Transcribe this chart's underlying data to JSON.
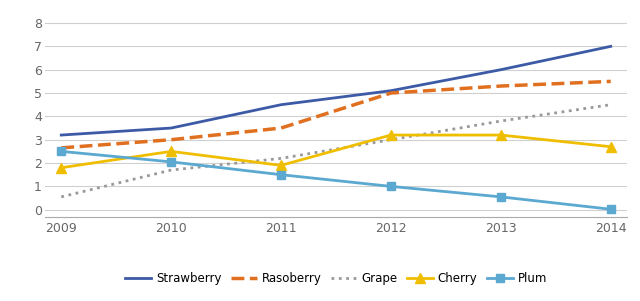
{
  "years": [
    2009,
    2010,
    2011,
    2012,
    2013,
    2014
  ],
  "series": {
    "Strawberry": {
      "values": [
        3.2,
        3.5,
        4.5,
        5.1,
        6.0,
        7.0
      ],
      "color": "#3C5AA6",
      "linestyle": "solid",
      "linewidth": 2.0,
      "marker": null,
      "markersize": 0
    },
    "Rasoberry": {
      "values": [
        2.65,
        3.0,
        3.5,
        5.0,
        5.3,
        5.5
      ],
      "color": "#E07020",
      "linestyle": "dashed",
      "linewidth": 2.5,
      "marker": null,
      "markersize": 0
    },
    "Grape": {
      "values": [
        0.55,
        1.7,
        2.2,
        3.0,
        3.8,
        4.5
      ],
      "color": "#999999",
      "linestyle": "dotted",
      "linewidth": 2.0,
      "marker": null,
      "markersize": 0
    },
    "Cherry": {
      "values": [
        1.8,
        2.5,
        1.9,
        3.2,
        3.2,
        2.7
      ],
      "color": "#F0BE00",
      "linestyle": "solid",
      "linewidth": 2.0,
      "marker": "^",
      "markersize": 7
    },
    "Plum": {
      "values": [
        2.5,
        2.05,
        1.5,
        1.0,
        0.55,
        0.02
      ],
      "color": "#5BA8D0",
      "linestyle": "solid",
      "linewidth": 2.0,
      "marker": "s",
      "markersize": 6
    }
  },
  "ylim": [
    -0.3,
    8.6
  ],
  "yticks": [
    0,
    1,
    2,
    3,
    4,
    5,
    6,
    7,
    8
  ],
  "background_color": "#FFFFFF",
  "grid_color": "#D0D0D0",
  "legend_order": [
    "Strawberry",
    "Rasoberry",
    "Grape",
    "Cherry",
    "Plum"
  ]
}
